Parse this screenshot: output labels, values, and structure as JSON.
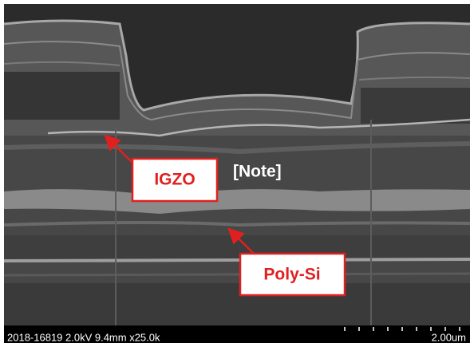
{
  "labels": {
    "igzo": "IGZO",
    "note": "[Note]",
    "poly_si": "Poly-Si"
  },
  "footer": {
    "info": "2018-16819 2.0kV 9.4mm x25.0k",
    "scale": "2.00um"
  }
}
